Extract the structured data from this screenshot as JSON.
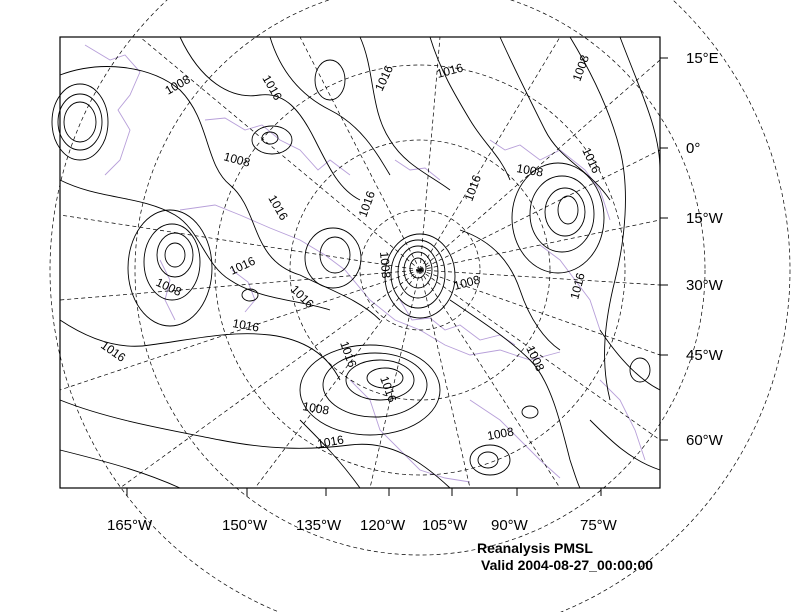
{
  "map": {
    "bottom_labels": [
      "165°W",
      "150°W",
      "135°W",
      "120°W",
      "105°W",
      "90°W",
      "75°W"
    ],
    "right_labels": [
      "15°E",
      "0°",
      "15°W",
      "30°W",
      "45°W",
      "60°W"
    ],
    "contour_labels": [
      "1008",
      "1016",
      "1016",
      "1016",
      "1008",
      "1008",
      "1016",
      "1016",
      "1016",
      "1016",
      "1008",
      "1016",
      "1008",
      "1016",
      "1008",
      "1016",
      "1008",
      "1016",
      "1008",
      "1016",
      "1016",
      "1008",
      "1008",
      "1016",
      "1008",
      "1016",
      "1008"
    ]
  },
  "caption": {
    "title": "Reanalysis PMSL",
    "valid": "Valid 2004-08-27_00:00:00"
  }
}
